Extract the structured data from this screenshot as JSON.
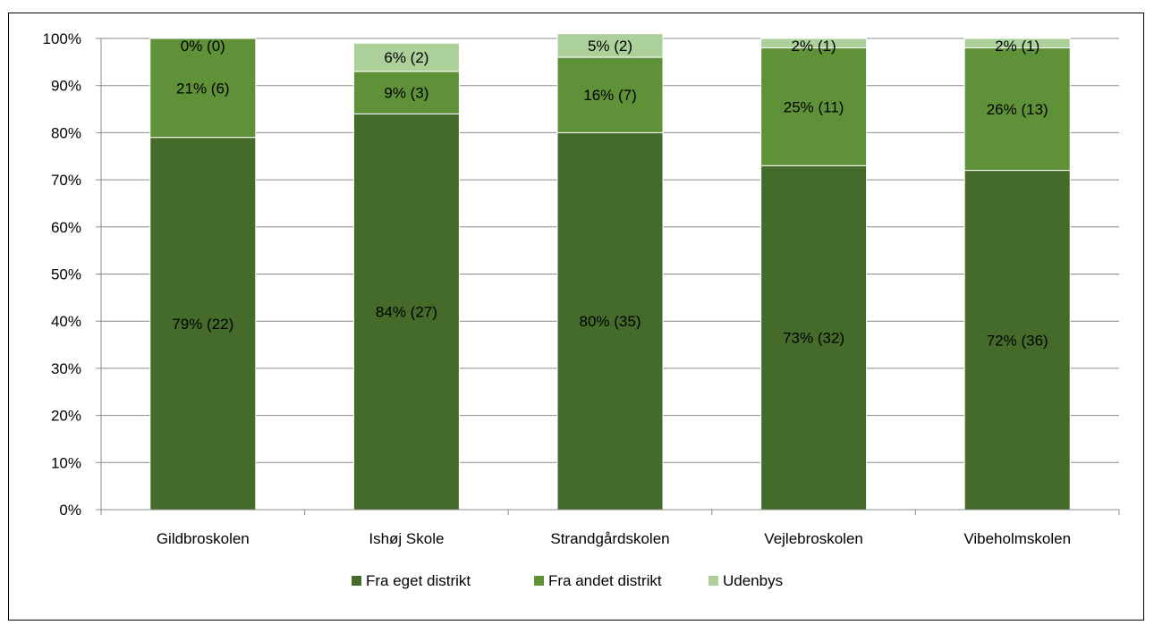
{
  "header": {
    "title": ""
  },
  "chart_data": {
    "type": "bar",
    "stacked": true,
    "percent": true,
    "categories": [
      "Gildbroskolen",
      "Ishøj Skole",
      "Strandgårdskolen",
      "Vejlebroskolen",
      "Vibeholmskolen"
    ],
    "series": [
      {
        "name": "Fra eget distrikt",
        "color": "#456b2b",
        "values": [
          79,
          84,
          80,
          73,
          72
        ],
        "labels": [
          "79% (22)",
          "84% (27)",
          "80% (35)",
          "73% (32)",
          "72% (36)"
        ]
      },
      {
        "name": "Fra andet distrikt",
        "color": "#5e9138",
        "values": [
          21,
          9,
          16,
          25,
          26
        ],
        "labels": [
          "21% (6)",
          "9% (3)",
          "16% (7)",
          "25% (11)",
          "26% (13)"
        ]
      },
      {
        "name": "Udenbys",
        "color": "#acd09a",
        "values": [
          0,
          6,
          5,
          2,
          2
        ],
        "labels": [
          "0% (0)",
          "6% (2)",
          "5% (2)",
          "2% (1)",
          "2% (1)"
        ]
      }
    ],
    "ylim": [
      0,
      100
    ],
    "yticks": [
      "0%",
      "10%",
      "20%",
      "30%",
      "40%",
      "50%",
      "60%",
      "70%",
      "80%",
      "90%",
      "100%"
    ],
    "grid": true,
    "legend": "bottom"
  }
}
